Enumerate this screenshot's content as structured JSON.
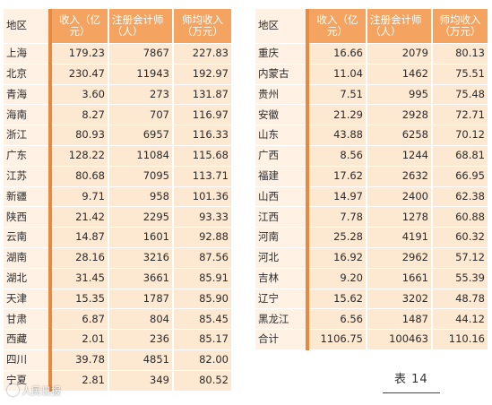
{
  "headers": {
    "region": "地区",
    "revenue": "收入（亿元）",
    "cpa_count": "注册会计师（人）",
    "per_cpa": "师均收入（万元）"
  },
  "left_rows": [
    {
      "region": "上海",
      "revenue": "179.23",
      "cpa": "7867",
      "per": "227.83"
    },
    {
      "region": "北京",
      "revenue": "230.47",
      "cpa": "11943",
      "per": "192.97"
    },
    {
      "region": "青海",
      "revenue": "3.60",
      "cpa": "273",
      "per": "131.87"
    },
    {
      "region": "海南",
      "revenue": "8.27",
      "cpa": "707",
      "per": "116.97"
    },
    {
      "region": "浙江",
      "revenue": "80.93",
      "cpa": "6957",
      "per": "116.33"
    },
    {
      "region": "广东",
      "revenue": "128.22",
      "cpa": "11084",
      "per": "115.68"
    },
    {
      "region": "江苏",
      "revenue": "80.68",
      "cpa": "7095",
      "per": "113.71"
    },
    {
      "region": "新疆",
      "revenue": "9.71",
      "cpa": "958",
      "per": "101.36"
    },
    {
      "region": "陕西",
      "revenue": "21.42",
      "cpa": "2295",
      "per": "93.33"
    },
    {
      "region": "云南",
      "revenue": "14.87",
      "cpa": "1601",
      "per": "92.88"
    },
    {
      "region": "湖南",
      "revenue": "28.16",
      "cpa": "3216",
      "per": "87.56"
    },
    {
      "region": "湖北",
      "revenue": "31.45",
      "cpa": "3661",
      "per": "85.91"
    },
    {
      "region": "天津",
      "revenue": "15.35",
      "cpa": "1787",
      "per": "85.90"
    },
    {
      "region": "甘肃",
      "revenue": "6.87",
      "cpa": "804",
      "per": "85.45"
    },
    {
      "region": "西藏",
      "revenue": "2.01",
      "cpa": "236",
      "per": "85.17"
    },
    {
      "region": "四川",
      "revenue": "39.78",
      "cpa": "4851",
      "per": "82.00"
    },
    {
      "region": "宁夏",
      "revenue": "2.81",
      "cpa": "349",
      "per": "80.52"
    }
  ],
  "right_rows": [
    {
      "region": "重庆",
      "revenue": "16.66",
      "cpa": "2079",
      "per": "80.13"
    },
    {
      "region": "内蒙古",
      "revenue": "11.04",
      "cpa": "1462",
      "per": "75.51"
    },
    {
      "region": "贵州",
      "revenue": "7.51",
      "cpa": "995",
      "per": "75.48"
    },
    {
      "region": "安徽",
      "revenue": "21.29",
      "cpa": "2928",
      "per": "72.71"
    },
    {
      "region": "山东",
      "revenue": "43.88",
      "cpa": "6258",
      "per": "70.12"
    },
    {
      "region": "广西",
      "revenue": "8.56",
      "cpa": "1244",
      "per": "68.81"
    },
    {
      "region": "福建",
      "revenue": "17.62",
      "cpa": "2632",
      "per": "66.95"
    },
    {
      "region": "山西",
      "revenue": "14.97",
      "cpa": "2400",
      "per": "62.38"
    },
    {
      "region": "江西",
      "revenue": "7.78",
      "cpa": "1278",
      "per": "60.88"
    },
    {
      "region": "河南",
      "revenue": "25.28",
      "cpa": "4191",
      "per": "60.32"
    },
    {
      "region": "河北",
      "revenue": "16.92",
      "cpa": "2962",
      "per": "57.12"
    },
    {
      "region": "吉林",
      "revenue": "9.20",
      "cpa": "1661",
      "per": "55.39"
    },
    {
      "region": "辽宁",
      "revenue": "15.62",
      "cpa": "3202",
      "per": "48.78"
    },
    {
      "region": "黑龙江",
      "revenue": "6.56",
      "cpa": "1487",
      "per": "44.12"
    },
    {
      "region": "合计",
      "revenue": "1106.75",
      "cpa": "100463",
      "per": "110.16"
    }
  ],
  "caption": "表 14",
  "watermark": "人民日报",
  "colors": {
    "header_accent": "#f4a460",
    "header_region_bg": "#fff2e4",
    "cell_bg": "#fde8d2",
    "divider_accent": "#e58a3e"
  }
}
